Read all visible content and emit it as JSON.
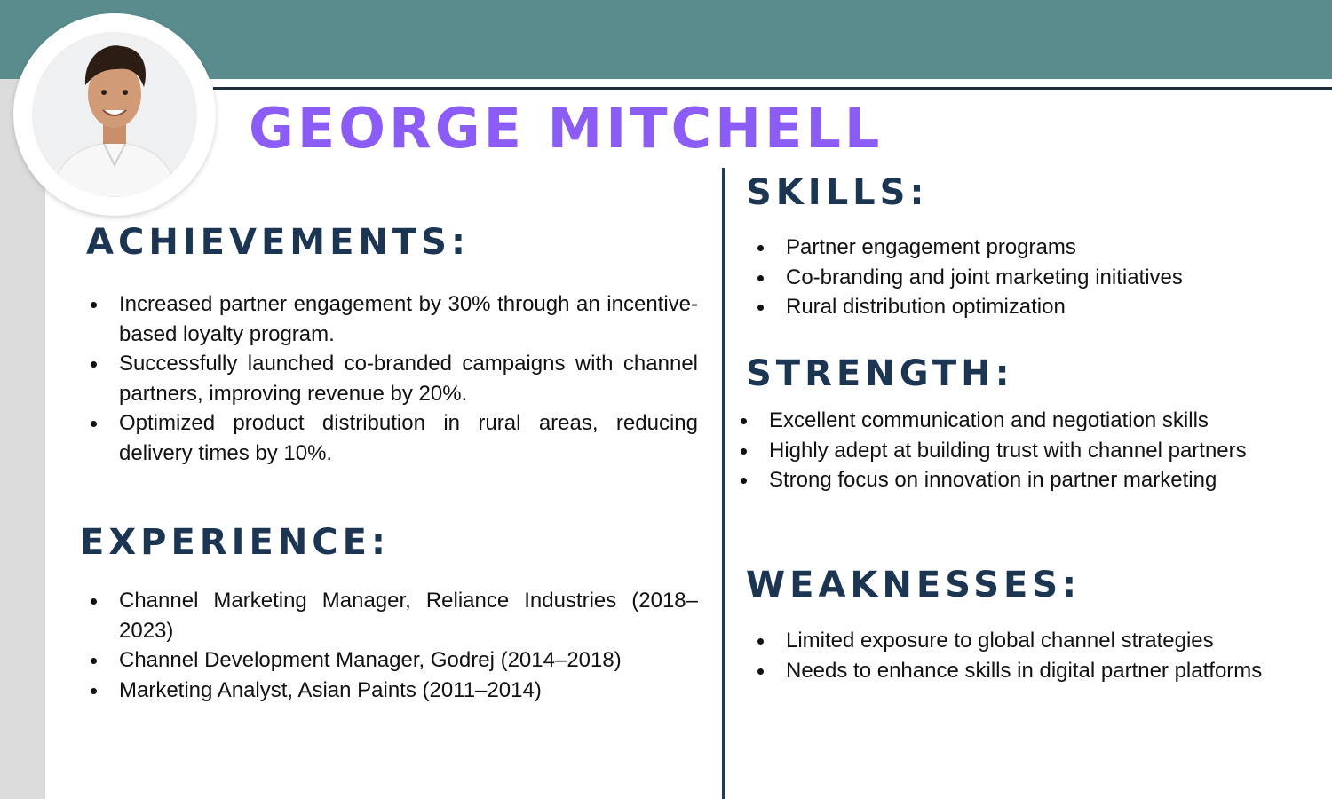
{
  "name": "GEORGE MITCHELL",
  "achievements": {
    "heading": "ACHIEVEMENTS:",
    "items": [
      "Increased partner engagement by 30% through an incentive-based loyalty program.",
      "Successfully launched co-branded campaigns with channel partners, improving revenue by 20%.",
      "Optimized product distribution in rural areas, reducing delivery times by 10%."
    ]
  },
  "experience": {
    "heading": "EXPERIENCE:",
    "items": [
      "Channel Marketing Manager, Reliance Industries (2018–2023)",
      "Channel Development Manager, Godrej (2014–2018)",
      "Marketing Analyst, Asian Paints (2011–2014)"
    ]
  },
  "skills": {
    "heading": "SKILLS:",
    "items": [
      "Partner engagement programs",
      "Co-branding and joint marketing initiatives",
      "Rural distribution optimization"
    ]
  },
  "strength": {
    "heading": "STRENGTH:",
    "items": [
      "Excellent communication and negotiation skills",
      "Highly adept at building trust with channel partners",
      "Strong focus on innovation in partner marketing"
    ]
  },
  "weaknesses": {
    "heading": "WEAKNESSES:",
    "items": [
      "Limited exposure to global channel strategies",
      "Needs to enhance skills in digital partner platforms"
    ]
  },
  "colors": {
    "header_band": "#5a8c8e",
    "name": "#8b5cf6",
    "heading": "#1b3553",
    "side_stripe": "#dcdcdc"
  }
}
